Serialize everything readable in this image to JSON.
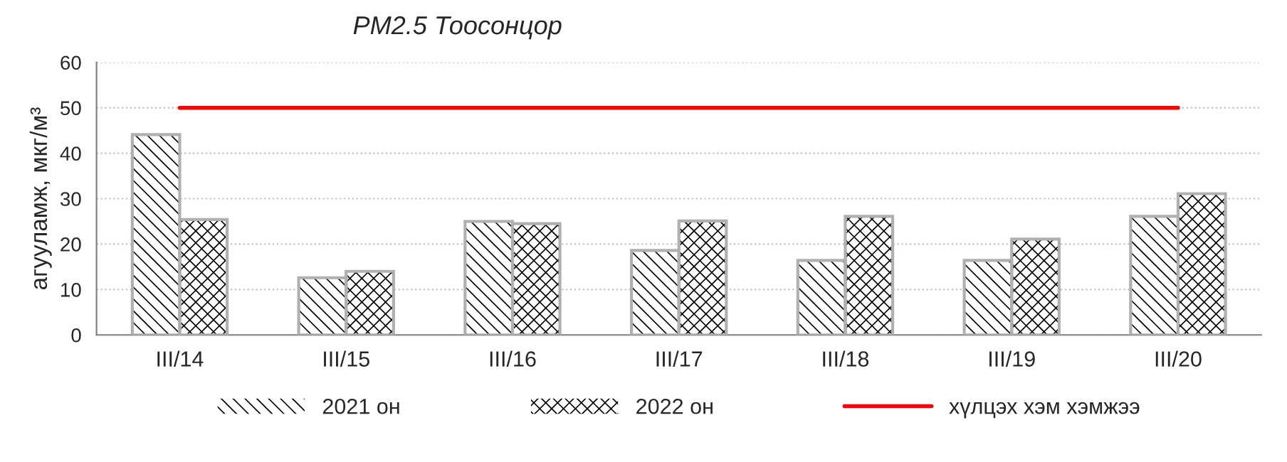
{
  "chart_data": {
    "type": "bar",
    "title": "PM2.5 Тоосонцор",
    "ylabel": "агууламж, мкг/м³",
    "categories": [
      "III/14",
      "III/15",
      "III/16",
      "III/17",
      "III/18",
      "III/19",
      "III/20"
    ],
    "series": [
      {
        "name": "2021 он",
        "color": "#000000",
        "values": [
          44.1,
          12.6,
          25.0,
          18.6,
          16.4,
          16.4,
          26.1
        ]
      },
      {
        "name": "2022 он",
        "color": "#000000",
        "values": [
          25.4,
          14.0,
          24.5,
          25.1,
          26.1,
          21.1,
          31.1
        ]
      },
      {
        "name": "хүлцэх хэм хэмжээ",
        "type": "line",
        "color": "#ff0000",
        "values": [
          50,
          50,
          50,
          50,
          50,
          50,
          50
        ]
      }
    ],
    "ylim": [
      0,
      60
    ],
    "yticks": [
      0,
      10,
      20,
      30,
      40,
      50,
      60
    ],
    "grid": "y",
    "legend": "bottom",
    "marker": "none",
    "line_style": "solid"
  }
}
